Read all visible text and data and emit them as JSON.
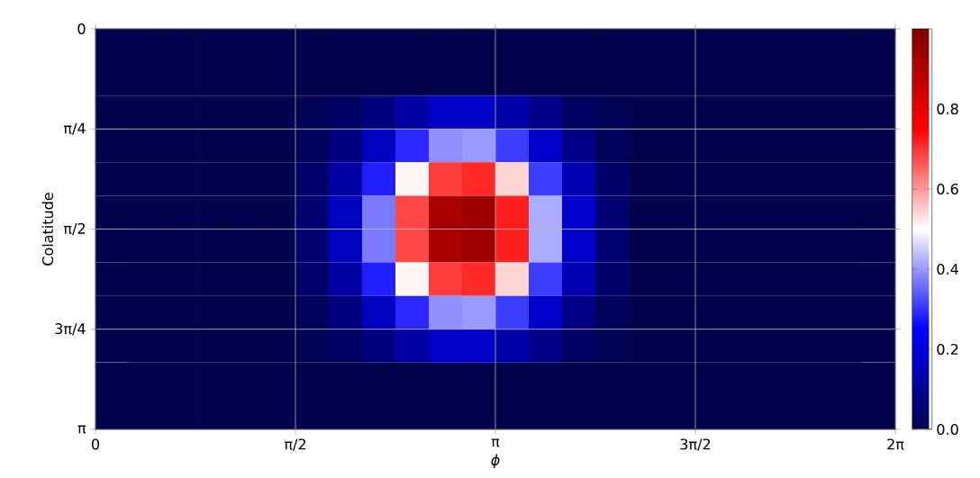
{
  "chart_data": {
    "type": "heatmap",
    "xlabel": "ϕ",
    "ylabel": "Colatitude",
    "xlim": [
      0,
      6.2832
    ],
    "ylim": [
      3.1416,
      0
    ],
    "xticks": [
      {
        "value": 0,
        "label": "0"
      },
      {
        "value": 1.5708,
        "label": "π/2"
      },
      {
        "value": 3.1416,
        "label": "π"
      },
      {
        "value": 4.7124,
        "label": "3π/2"
      },
      {
        "value": 6.2832,
        "label": "2π"
      }
    ],
    "yticks": [
      {
        "value": 0,
        "label": "0"
      },
      {
        "value": 0.7854,
        "label": "π/4"
      },
      {
        "value": 1.5708,
        "label": "π/2"
      },
      {
        "value": 2.3562,
        "label": "3π/4"
      },
      {
        "value": 3.1416,
        "label": "π"
      }
    ],
    "clim": [
      0,
      1
    ],
    "cticks": [
      {
        "value": 0,
        "label": "0.0"
      },
      0.2,
      0.4,
      0.6,
      0.8
    ],
    "grid": true,
    "cells": [
      [
        0,
        0,
        0,
        0,
        0,
        0,
        0,
        0,
        0,
        0,
        0,
        0,
        0,
        0,
        0,
        0,
        0,
        0,
        0,
        0,
        0,
        0,
        0,
        0
      ],
      [
        0,
        0,
        0,
        0,
        0,
        0,
        0,
        0,
        0,
        0,
        0,
        0,
        0,
        0,
        0,
        0,
        0,
        0,
        0,
        0,
        0,
        0,
        0,
        0
      ],
      [
        0,
        0,
        0,
        0,
        0,
        0,
        0.01,
        0.03,
        0.07,
        0.12,
        0.17,
        0.17,
        0.13,
        0.08,
        0.03,
        0.01,
        0,
        0,
        0,
        0,
        0,
        0,
        0,
        0
      ],
      [
        0,
        0,
        0,
        0,
        0,
        0,
        0.02,
        0.07,
        0.16,
        0.29,
        0.39,
        0.4,
        0.31,
        0.18,
        0.08,
        0.02,
        0,
        0,
        0,
        0,
        0,
        0,
        0,
        0
      ],
      [
        0,
        0,
        0,
        0,
        0,
        0,
        0.04,
        0.12,
        0.28,
        0.51,
        0.69,
        0.71,
        0.54,
        0.31,
        0.14,
        0.04,
        0,
        0,
        0,
        0,
        0,
        0,
        0,
        0
      ],
      [
        0,
        0,
        0,
        0,
        0,
        0,
        0.05,
        0.16,
        0.37,
        0.68,
        0.92,
        0.94,
        0.72,
        0.42,
        0.18,
        0.06,
        0,
        0,
        0,
        0,
        0,
        0,
        0,
        0
      ],
      [
        0,
        0,
        0,
        0,
        0,
        0,
        0.05,
        0.16,
        0.37,
        0.68,
        0.92,
        0.94,
        0.72,
        0.42,
        0.18,
        0.06,
        0,
        0,
        0,
        0,
        0,
        0,
        0,
        0
      ],
      [
        0,
        0,
        0,
        0,
        0,
        0,
        0.04,
        0.12,
        0.28,
        0.51,
        0.69,
        0.71,
        0.54,
        0.31,
        0.14,
        0.04,
        0,
        0,
        0,
        0,
        0,
        0,
        0,
        0
      ],
      [
        0,
        0,
        0,
        0,
        0,
        0,
        0.02,
        0.07,
        0.16,
        0.29,
        0.39,
        0.4,
        0.31,
        0.18,
        0.08,
        0.02,
        0,
        0,
        0,
        0,
        0,
        0,
        0,
        0
      ],
      [
        0,
        0,
        0,
        0,
        0,
        0,
        0.01,
        0.03,
        0.07,
        0.12,
        0.17,
        0.17,
        0.13,
        0.08,
        0.03,
        0.01,
        0,
        0,
        0,
        0,
        0,
        0,
        0,
        0
      ],
      [
        0,
        0,
        0,
        0,
        0,
        0,
        0,
        0,
        0,
        0,
        0,
        0,
        0,
        0,
        0,
        0,
        0,
        0,
        0,
        0,
        0,
        0,
        0,
        0
      ],
      [
        0,
        0,
        0,
        0,
        0,
        0,
        0,
        0,
        0,
        0,
        0,
        0,
        0,
        0,
        0,
        0,
        0,
        0,
        0,
        0,
        0,
        0,
        0,
        0
      ]
    ]
  }
}
